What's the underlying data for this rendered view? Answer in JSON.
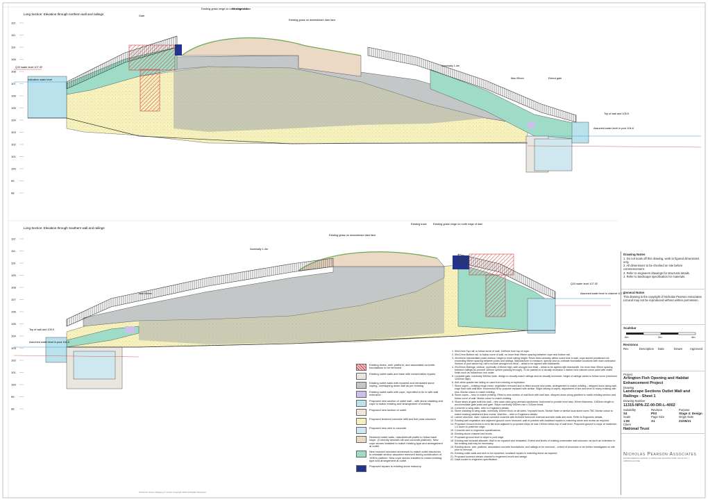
{
  "sections": {
    "top_title": "Long Section: Elevation through northern wall and railings",
    "bottom_title": "Long Section: Elevation through Southern wall and railings",
    "axis_levels": [
      "112",
      "111",
      "110",
      "109",
      "108",
      "107",
      "106",
      "105",
      "104",
      "103",
      "102",
      "101",
      "100",
      "99",
      "98"
    ],
    "top_labels": {
      "existing_grass_north": "Existing grass verge on north edge of dam",
      "existing_track": "Existing track",
      "existing_grass_downstream": "Existing grass on downstream dam face",
      "q10_water": "Q10 water level 107.92",
      "indicative_water": "Indicative water level",
      "top_of_wall": "Top of wall and 105.5",
      "assumed_water": "Assumed water level in pool 104.6",
      "nominally_1_4m": "Nominally 1.4m",
      "gate": "Gate",
      "existing_gate": "Existing gate",
      "dim_1": "Max 95mm",
      "dim_2": "Extent gate"
    },
    "bottom_labels": {
      "existing_grass_downstream": "Existing grass on downstream dam face",
      "existing_track": "Existing track",
      "existing_grass_north": "Existing grass verge on north edge of dam",
      "q10_water": "Q10 water level 107.92",
      "assumed_channel": "Assumed water level in channel 107.6",
      "top_of_wall": "Top of wall and 105.5",
      "assumed_pool": "Assumed water level in pool 104.6",
      "nominally_1_4m": "Nominally 1.4m",
      "dim_1": "max 95mm"
    }
  },
  "legend": [
    {
      "color": "#f4c4c4",
      "hatch": true,
      "text": "Existing sluice, weir, platform, and associated concrete foundations to be removed"
    },
    {
      "color": "#e9e6df",
      "text": "Existing outlet walls and base with conservation repairs"
    },
    {
      "color": "#c3c7c8",
      "text": "Existing outlet walls with repaired and reinstated stone coping, overlapping down wall as per existing"
    },
    {
      "color": "#cbbfe9",
      "text": "Existing outlet walls with cope, reprofiled to tie in with wall extension"
    },
    {
      "color": "#b9e2ed",
      "text": "Proposed new section of outlet wall – with stone cladding and cope to match existing and arrangement of existing"
    },
    {
      "color": "#f2e4d6",
      "text": "Proposed new section of outlet"
    },
    {
      "color": "#f6f1bd",
      "text": "Proposed textured concrete infill and fish pass structure"
    },
    {
      "color": "#cfe7ef",
      "text": "Proposed new weir in concrete"
    },
    {
      "color": "#ecd9c5",
      "text": "Restored outlet walls, raised/rebuilt profile to follow bank slope. (Currently beneath silt and concrete platform). New cope stones installed to match existing type and arrangement at outlet"
    },
    {
      "color": "#9fdcc7",
      "text": "New coursed mortared stonework to match outlet structures to reinstate section assumed removed during construction of 1990's platform. New cope stones installed to match existing type and arrangement at outlet"
    },
    {
      "color": "#23348f",
      "text": "Proposed repairs to existing stone masonry"
    }
  ],
  "notes": [
    "50x12mm Top rail, to follow curve of wall, 1100mm from top of cope.",
    "50x12mm Bottom rail, to follow curve of wall, no more than 95mm spacing between cope and bottom rail.",
    "40x40mm intermediate posts vertical, height to meet railing height. Resin fixed centrally within cored hole in wall, cope stones positioned not exceeding 95mm spacing between posts and railings. Manufacturer to measure, specify and co-ordinate foundation locations with main contractor. Section of post above top rail to include wrought iron finial – detail to be agreed with blacksmith.",
    "20x20mm Railings, vertical, nominally 1150mm high, with wrought iron finial – detail to be agreed with blacksmith. No more than 95mm spacing between railings (to prevent 100mm sphere passing through). To be painted in a visually recessive 2 darker tone natural colour paint with matte finish such as micaceous iron oxide.",
    "Lockable gate, nominally 900mm wide, design to visually match railings and be visually recessive, height of railings varies to follow curve (minimum 1150mm high).",
    "Anti climb quarter fan railing on used from existing or replicated.",
    "Stone copes – existing rough hewn, vegetation removed and re-fitted around new posts, arrangement to match existing – stepped down along wall, edge flush with wall face; brokenshot fit for purpose replaced with similar. Slight raising of copes, adjustment of line and level to marry existing with new. Mortar colour to match existing.",
    "Stone copes – new, to match existing. Fitted to new section of wall flush with wall face, stepped down along gradient to match existing section and follow curve of wall. Mortar colour to match existing.",
    "Stone steps at gate built into wall – new sawn dark grey pennant sandstone; horizontal to provide level step, 50mm thickness, 1000mm length to accommodate gate posts and gate. Steps nominally 180mm rise x 310mm tread.",
    "Concrete to wing walls, refer to Engineers details.",
    "Stone cladding to wing walls, nominally 150mm thick on all sides / exposed faces. Mortar State or similar local stone sizes TBC Mortar colour to match existing weathered lime mortar. Wall ties – refer to Engineers details.",
    "Larnier structure, dark / natural coloured concrete with textured formwork external and side walls and ends. Refer to Engineers details.",
    "Existing wall vegetation and adjacent ground cover removed; wall re-pointed with localised repairs in matching stone and mortar as required.",
    "Proposed Ground levels to form flat area adjacent to proposed steps at max 190mm below top of wall level. Proposed ground to slope at maximum 1:3 down to post/river edge.",
    "Concrete weir to engineers specifications.",
    "Existing sluice channel bed levels.",
    "Proposed ground level to slope to pool edge.",
    "Existing wall beneath siltwater. Wall to be repaired and reinstated. Extent and levels of existing underwater wall unknown; as such an extension to the existing wall may be necessary.",
    "Existing sluice, weir, platform, associated concrete foundations, and railings to be removed – extent of structures to be further investigated on site prior to removal.",
    "Existing outlet walls and arch to be repointed, localised repairs in matching stone as required.",
    "Proposed lowered stream channel to engineers levels and design.",
    "Davit socket to engineers specification."
  ],
  "titleblock": {
    "drawing_notes_h": "Drawing Notes",
    "drawing_notes": "1. Do not scale off this drawing, work to figured dimensions only.\n2. All dimensions to be checked on site before commencement.\n3. Refer to engineers drawings for structural details.\n4. Refer to landscape specification for materials.",
    "general_notes_h": "General Notes",
    "general_notes": "This drawing is the copyright of Nicholas Pearson Associates Ltd and may not be reproduced without written permission.",
    "scalebar_h": "Scalebar",
    "scale_ticks": [
      "0m",
      "2m",
      "4m"
    ],
    "revisions_h": "Revisions",
    "rev_cols": [
      "Rev",
      "Description",
      "Date",
      "Drawn",
      "Approved"
    ],
    "project_h": "Project",
    "project": "Arlington Fish Opening and Habitat Enhancement Project",
    "drawing_h": "Drawing",
    "drawing": "Landscape Sections Outlet Wall and Railings - Sheet 1",
    "drawing_number_h": "Drawing Number",
    "drawing_number": "11315-NPA-ZZ-00-DR-L-4002",
    "suit_h": "Suitability",
    "rev_h": "Revision",
    "purpose_h": "Purpose",
    "suit": "S4",
    "rev": "P03",
    "purpose": "Stage 4: Design",
    "scale_h": "Scale",
    "size_h": "Page Size",
    "date_h": "Origin Date",
    "scale": "1:50",
    "size": "A1",
    "date": "21/05/21",
    "client_h": "Client",
    "client": "National Trust",
    "company": "Nicholas Pearson Associates",
    "company_sub": "ENVIRONMENTAL DESIGN | LANDSCAPE ARCHITECTURE | ECOLOGY | ARBORICULTURE"
  },
  "footer": "Ordnance Survey Mapping © Crown Copyright 2021 All Rights Reserved"
}
